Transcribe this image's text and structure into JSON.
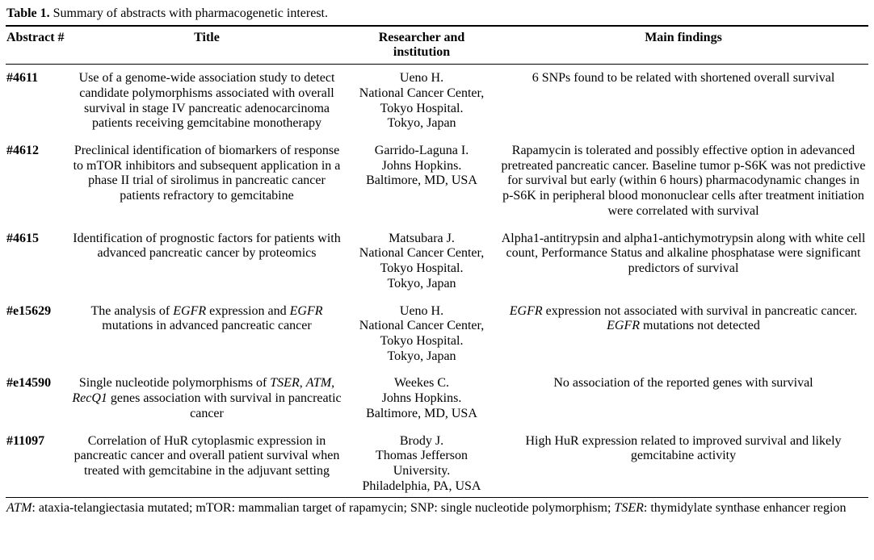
{
  "page": {
    "caption": {
      "label": "Table 1.",
      "text": " Summary of abstracts with pharmacogenetic interest."
    },
    "columns": [
      "Abstract #",
      "Title",
      "Researcher and\ninstitution",
      "Main findings"
    ],
    "rows": [
      {
        "number": "#4611",
        "title": "Use of a genome-wide association study to detect candidate polymorphisms associated with overall survival in stage IV pancreatic adenocarcinoma patients receiving gemcitabine monotherapy",
        "researcher": "Ueno H.\nNational Cancer Center,\nTokyo Hospital.\nTokyo, Japan",
        "findings": "6 SNPs found to be related with shortened overall survival"
      },
      {
        "number": "#4612",
        "title": "Preclinical identification of biomarkers of response to mTOR inhibitors and subsequent application in a phase II trial of sirolimus in pancreatic cancer patients refractory to gemcitabine",
        "researcher": "Garrido-Laguna I.\nJohns Hopkins.\nBaltimore, MD, USA",
        "findings": "Rapamycin is tolerated and possibly effective option in adevanced pretreated pancreatic cancer. Baseline tumor p-S6K was not predictive for survival but early (within 6 hours) pharmacodynamic changes in p-S6K in peripheral blood mononuclear cells after treatment initiation were correlated with survival"
      },
      {
        "number": "#4615",
        "title": "Identification of prognostic factors for patients with advanced pancreatic cancer by proteomics",
        "researcher": "Matsubara J.\nNational Cancer Center,\nTokyo Hospital.\nTokyo, Japan",
        "findings": "Alpha1-antitrypsin and alpha1-antichymotrypsin along with white cell count, Performance Status and alkaline phosphatase were significant predictors of survival"
      },
      {
        "number": "#e15629",
        "title": "The analysis of *EGFR* expression and *EGFR* mutations in advanced pancreatic cancer",
        "researcher": "Ueno H.\nNational Cancer Center,\nTokyo Hospital.\nTokyo, Japan",
        "findings": "*EGFR* expression not associated with survival in pancreatic cancer. *EGFR* mutations not detected"
      },
      {
        "number": "#e14590",
        "title": "Single nucleotide polymorphisms of *TSER*, *ATM*, *RecQ1* genes association with survival in pancreatic cancer",
        "researcher": "Weekes C.\nJohns Hopkins.\nBaltimore, MD, USA",
        "findings": "No association of the reported genes with survival"
      },
      {
        "number": "#11097",
        "title": "Correlation of HuR cytoplasmic expression in pancreatic cancer and overall patient survival when treated with gemcitabine in the adjuvant setting",
        "researcher": "Brody J.\nThomas Jefferson\nUniversity.\nPhiladelphia, PA, USA",
        "findings": "High HuR expression related to improved survival and likely gemcitabine activity"
      }
    ],
    "footnote": "*ATM*: ataxia-telangiectasia mutated; mTOR: mammalian target of rapamycin; SNP: single nucleotide polymorphism; *TSER*: thymidylate synthase enhancer region"
  }
}
